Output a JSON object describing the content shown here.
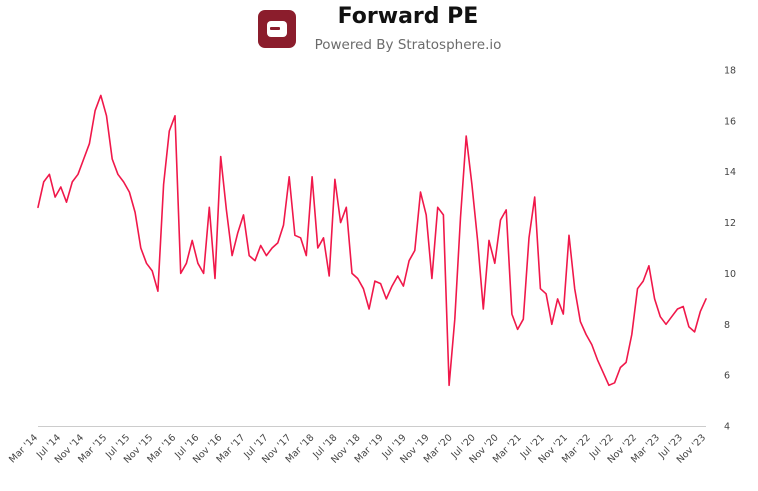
{
  "header": {
    "title": "Forward PE",
    "subtitle": "Powered By Stratosphere.io",
    "logo_icon": "stratosphere-logo-icon",
    "brand_color": "#8b1d2c"
  },
  "chart_data": {
    "type": "line",
    "title": "Forward PE",
    "subtitle": "Powered By Stratosphere.io",
    "xlabel": "",
    "ylabel": "",
    "line_color": "#f0184a",
    "ylim": [
      4,
      18
    ],
    "y_axis_position": "right",
    "yticks": [
      4,
      6,
      8,
      10,
      12,
      14,
      16,
      18
    ],
    "xlim": [
      "2014-03",
      "2023-12"
    ],
    "xticks": [
      "Mar '14",
      "Jul '14",
      "Nov '14",
      "Mar '15",
      "Jul '15",
      "Nov '15",
      "Mar '16",
      "Jul '16",
      "Nov '16",
      "Mar '17",
      "Jul '17",
      "Nov '17",
      "Mar '18",
      "Jul '18",
      "Nov '18",
      "Mar '19",
      "Jul '19",
      "Nov '19",
      "Mar '20",
      "Jul '20",
      "Nov '20",
      "Mar '21",
      "Jul '21",
      "Nov '21",
      "Mar '22",
      "Jul '22",
      "Nov '22",
      "Mar '23",
      "Jul '23",
      "Nov '23"
    ],
    "grid": false,
    "series": [
      {
        "x": [
          "2014-03",
          "2014-04",
          "2014-05",
          "2014-06",
          "2014-07",
          "2014-08",
          "2014-09",
          "2014-10",
          "2014-11",
          "2014-12",
          "2015-01",
          "2015-02",
          "2015-03",
          "2015-04",
          "2015-05",
          "2015-06",
          "2015-07",
          "2015-08",
          "2015-09",
          "2015-10",
          "2015-11",
          "2015-12",
          "2016-01",
          "2016-02",
          "2016-03",
          "2016-04",
          "2016-05",
          "2016-06",
          "2016-07",
          "2016-08",
          "2016-09",
          "2016-10",
          "2016-11",
          "2016-12",
          "2017-01",
          "2017-02",
          "2017-03",
          "2017-04",
          "2017-05",
          "2017-06",
          "2017-07",
          "2017-08",
          "2017-09",
          "2017-10",
          "2017-11",
          "2017-12",
          "2018-01",
          "2018-02",
          "2018-03",
          "2018-04",
          "2018-05",
          "2018-06",
          "2018-07",
          "2018-08",
          "2018-09",
          "2018-10",
          "2018-11",
          "2018-12",
          "2019-01",
          "2019-02",
          "2019-03",
          "2019-04",
          "2019-05",
          "2019-06",
          "2019-07",
          "2019-08",
          "2019-09",
          "2019-10",
          "2019-11",
          "2019-12",
          "2020-01",
          "2020-02",
          "2020-03",
          "2020-04",
          "2020-05",
          "2020-06",
          "2020-07",
          "2020-08",
          "2020-09",
          "2020-10",
          "2020-11",
          "2020-12",
          "2021-01",
          "2021-02",
          "2021-03",
          "2021-04",
          "2021-05",
          "2021-06",
          "2021-07",
          "2021-08",
          "2021-09",
          "2021-10",
          "2021-11",
          "2021-12",
          "2022-01",
          "2022-02",
          "2022-03",
          "2022-04",
          "2022-05",
          "2022-06",
          "2022-07",
          "2022-08",
          "2022-09",
          "2022-10",
          "2022-11",
          "2022-12",
          "2023-01",
          "2023-02",
          "2023-03",
          "2023-04",
          "2023-05",
          "2023-06",
          "2023-07",
          "2023-08",
          "2023-09",
          "2023-10",
          "2023-11",
          "2023-12"
        ],
        "values": [
          12.6,
          13.6,
          13.9,
          13.0,
          13.4,
          12.8,
          13.6,
          13.9,
          14.5,
          15.1,
          16.4,
          17.0,
          16.2,
          14.5,
          13.9,
          13.6,
          13.2,
          12.4,
          11.0,
          10.4,
          10.1,
          9.3,
          13.5,
          15.6,
          16.2,
          10.0,
          10.4,
          11.3,
          10.4,
          10.0,
          12.6,
          9.8,
          14.6,
          12.5,
          10.7,
          11.6,
          12.3,
          10.7,
          10.5,
          11.1,
          10.7,
          11.0,
          11.2,
          11.9,
          13.8,
          11.5,
          11.4,
          10.7,
          13.8,
          11.0,
          11.4,
          9.9,
          13.7,
          12.0,
          12.6,
          10.0,
          9.8,
          9.4,
          8.6,
          9.7,
          9.6,
          9.0,
          9.5,
          9.9,
          9.5,
          10.5,
          10.9,
          13.2,
          12.3,
          9.8,
          12.6,
          12.3,
          5.6,
          8.2,
          12.2,
          15.4,
          13.5,
          11.3,
          8.6,
          11.3,
          10.4,
          12.1,
          12.5,
          8.4,
          7.8,
          8.2,
          11.4,
          13.0,
          9.4,
          9.2,
          8.0,
          9.0,
          8.4,
          11.5,
          9.4,
          8.1,
          7.6,
          7.2,
          6.6,
          6.1,
          5.6,
          5.7,
          6.3,
          6.5,
          7.6,
          9.4,
          9.7,
          10.3,
          9.0,
          8.3,
          8.0,
          8.3,
          8.6,
          8.7,
          7.9,
          7.7,
          8.5,
          9.0
        ]
      }
    ]
  }
}
